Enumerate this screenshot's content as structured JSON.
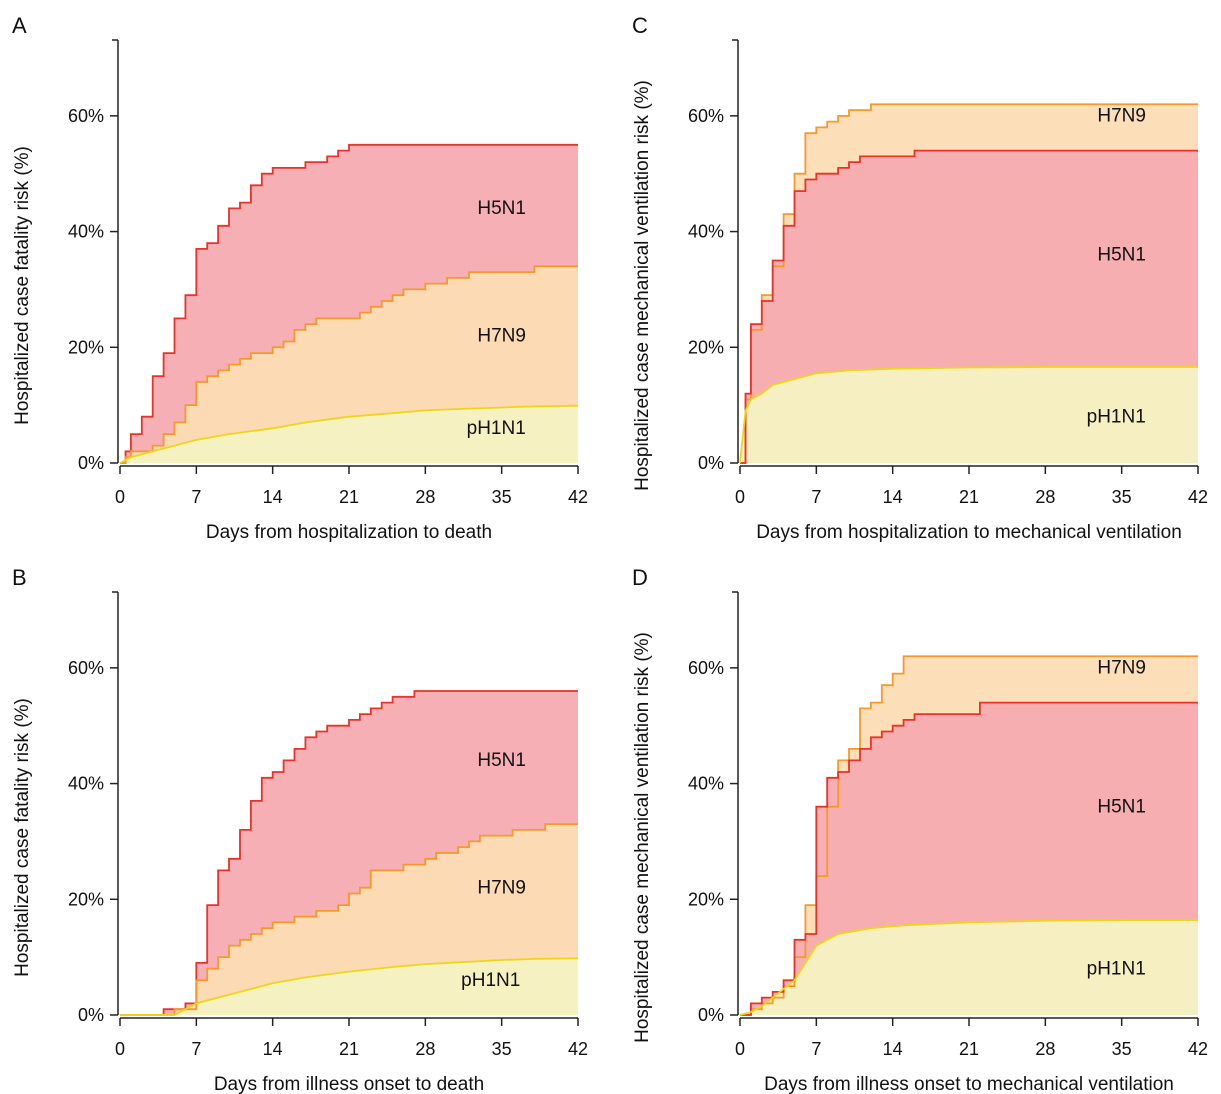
{
  "colors": {
    "H5N1": "#f6abb0",
    "H7N9": "#fcdcb4",
    "pH1N1": "#f5f2c2",
    "line_H5N1": "#e8332a",
    "line_H7N9": "#f39a2a",
    "line_pH1N1": "#efd51a",
    "axis": "#222222"
  },
  "chart_data": [
    {
      "panel": "A",
      "type": "area",
      "xlabel": "Days from hospitalization to death",
      "ylabel": "Hospitalized case fatality risk (%)",
      "xlim": [
        0,
        42
      ],
      "ylim": [
        0,
        70
      ],
      "xticks": [
        0,
        7,
        14,
        21,
        28,
        35,
        42
      ],
      "yticks": [
        0,
        20,
        40,
        60
      ],
      "ytick_labels": [
        "0%",
        "20%",
        "40%",
        "60%"
      ],
      "labels": [
        {
          "text": "H5N1",
          "x": 35,
          "y": 43
        },
        {
          "text": "H7N9",
          "x": 35,
          "y": 21
        },
        {
          "text": "pH1N1",
          "x": 34.5,
          "y": 5
        }
      ],
      "series": [
        {
          "name": "H5N1",
          "step": true,
          "x": [
            0,
            0.5,
            1,
            2,
            3,
            4,
            5,
            6,
            7,
            8,
            9,
            10,
            11,
            12,
            13,
            14,
            15,
            16,
            17,
            18,
            19,
            20,
            21,
            42
          ],
          "y": [
            0,
            2,
            5,
            8,
            15,
            19,
            25,
            29,
            37,
            38,
            41,
            44,
            45,
            48,
            50,
            51,
            51,
            51,
            52,
            52,
            53,
            54,
            55,
            55
          ]
        },
        {
          "name": "H7N9",
          "step": true,
          "x": [
            0,
            0.5,
            1,
            3,
            4,
            5,
            6,
            7,
            8,
            9,
            10,
            11,
            12,
            14,
            15,
            16,
            17,
            18,
            21,
            22,
            23,
            24,
            25,
            26,
            27,
            28,
            30,
            31,
            32,
            33,
            35,
            36,
            37,
            38,
            40,
            41,
            42
          ],
          "y": [
            0,
            1,
            2,
            3,
            5,
            7,
            10,
            14,
            15,
            16,
            17,
            18,
            19,
            20,
            21,
            23,
            24,
            25,
            25,
            26,
            27,
            28,
            29,
            30,
            30,
            31,
            32,
            32,
            33,
            33,
            33,
            33,
            33,
            34,
            34,
            34,
            34
          ]
        },
        {
          "name": "pH1N1",
          "step": false,
          "x": [
            0,
            1,
            3,
            5,
            7,
            10,
            14,
            17,
            21,
            25,
            28,
            32,
            35,
            38,
            42
          ],
          "y": [
            0,
            1,
            2,
            3,
            4,
            5,
            6,
            7,
            8,
            8.6,
            9.1,
            9.4,
            9.6,
            9.8,
            9.9
          ]
        }
      ]
    },
    {
      "panel": "B",
      "type": "area",
      "xlabel": "Days from illness onset to death",
      "ylabel": "Hospitalized case fatality risk (%)",
      "xlim": [
        0,
        42
      ],
      "ylim": [
        0,
        70
      ],
      "xticks": [
        0,
        7,
        14,
        21,
        28,
        35,
        42
      ],
      "yticks": [
        0,
        20,
        40,
        60
      ],
      "ytick_labels": [
        "0%",
        "20%",
        "40%",
        "60%"
      ],
      "labels": [
        {
          "text": "H5N1",
          "x": 35,
          "y": 43
        },
        {
          "text": "H7N9",
          "x": 35,
          "y": 21
        },
        {
          "text": "pH1N1",
          "x": 34,
          "y": 5
        }
      ],
      "series": [
        {
          "name": "H5N1",
          "step": true,
          "x": [
            0,
            3,
            4,
            5,
            6,
            7,
            8,
            9,
            10,
            11,
            12,
            13,
            14,
            15,
            16,
            17,
            18,
            19,
            20,
            21,
            22,
            23,
            24,
            25,
            26,
            27,
            42
          ],
          "y": [
            0,
            0,
            1,
            1,
            2,
            9,
            19,
            25,
            27,
            32,
            37,
            41,
            42,
            44,
            46,
            48,
            49,
            50,
            50,
            51,
            52,
            53,
            54,
            55,
            55,
            56,
            56
          ]
        },
        {
          "name": "H7N9",
          "step": true,
          "x": [
            0,
            3,
            5,
            6,
            7,
            8,
            9,
            10,
            11,
            12,
            13,
            14,
            15,
            16,
            17,
            18,
            19,
            20,
            21,
            22,
            23,
            24,
            25,
            26,
            27,
            28,
            29,
            30,
            31,
            32,
            33,
            34,
            35,
            36,
            37,
            38,
            39,
            40,
            41,
            42
          ],
          "y": [
            0,
            0,
            1,
            1,
            6,
            8,
            10,
            12,
            13,
            14,
            15,
            16,
            16,
            17,
            17,
            18,
            18,
            19,
            21,
            22,
            25,
            25,
            25,
            26,
            26,
            27,
            28,
            28,
            29,
            30,
            31,
            31,
            31,
            32,
            32,
            32,
            33,
            33,
            33,
            33
          ]
        },
        {
          "name": "pH1N1",
          "step": false,
          "x": [
            0,
            5,
            6,
            7,
            9,
            12,
            14,
            17,
            21,
            25,
            28,
            32,
            35,
            38,
            42
          ],
          "y": [
            0,
            0,
            1,
            2,
            3,
            4.5,
            5.5,
            6.5,
            7.5,
            8.3,
            8.8,
            9.2,
            9.5,
            9.7,
            9.8
          ]
        }
      ]
    },
    {
      "panel": "C",
      "type": "area",
      "xlabel": "Days from hospitalization to mechanical ventilation",
      "ylabel": "Hospitalized case mechanical ventilation risk (%)",
      "xlim": [
        0,
        42
      ],
      "ylim": [
        0,
        70
      ],
      "xticks": [
        0,
        7,
        14,
        21,
        28,
        35,
        42
      ],
      "yticks": [
        0,
        20,
        40,
        60
      ],
      "ytick_labels": [
        "0%",
        "20%",
        "40%",
        "60%"
      ],
      "labels": [
        {
          "text": "H7N9",
          "x": 35,
          "y": 59
        },
        {
          "text": "H5N1",
          "x": 35,
          "y": 35
        },
        {
          "text": "pH1N1",
          "x": 34.5,
          "y": 7
        }
      ],
      "series": [
        {
          "name": "H7N9",
          "step": true,
          "x": [
            0,
            0.5,
            1,
            2,
            3,
            4,
            5,
            6,
            7,
            8,
            9,
            10,
            11,
            12,
            13,
            14,
            42
          ],
          "y": [
            0,
            11,
            23,
            29,
            34,
            43,
            50,
            57,
            58,
            59,
            60,
            61,
            61,
            62,
            62,
            62,
            62
          ]
        },
        {
          "name": "H5N1",
          "step": true,
          "x": [
            0,
            0.5,
            1,
            2,
            3,
            4,
            5,
            6,
            7,
            8,
            9,
            10,
            11,
            12,
            13,
            14,
            15,
            16,
            42
          ],
          "y": [
            0,
            12,
            24,
            28,
            35,
            41,
            47,
            49,
            50,
            50,
            51,
            52,
            53,
            53,
            53,
            53,
            53,
            54,
            54
          ]
        },
        {
          "name": "pH1N1",
          "step": false,
          "x": [
            0,
            0.5,
            1,
            2,
            3,
            5,
            7,
            10,
            14,
            21,
            28,
            35,
            42
          ],
          "y": [
            0,
            9,
            11,
            12,
            13.5,
            14.5,
            15.5,
            16,
            16.3,
            16.5,
            16.6,
            16.6,
            16.6
          ]
        }
      ]
    },
    {
      "panel": "D",
      "type": "area",
      "xlabel": "Days from illness onset to mechanical ventilation",
      "ylabel": "Hospitalized case mechanical ventilation risk (%)",
      "xlim": [
        0,
        42
      ],
      "ylim": [
        0,
        70
      ],
      "xticks": [
        0,
        7,
        14,
        21,
        28,
        35,
        42
      ],
      "yticks": [
        0,
        20,
        40,
        60
      ],
      "ytick_labels": [
        "0%",
        "20%",
        "40%",
        "60%"
      ],
      "labels": [
        {
          "text": "H7N9",
          "x": 35,
          "y": 59
        },
        {
          "text": "H5N1",
          "x": 35,
          "y": 35
        },
        {
          "text": "pH1N1",
          "x": 34.5,
          "y": 7
        }
      ],
      "series": [
        {
          "name": "H7N9",
          "step": true,
          "x": [
            0,
            1,
            2,
            3,
            4,
            5,
            6,
            7,
            8,
            9,
            10,
            11,
            12,
            13,
            14,
            15,
            42
          ],
          "y": [
            0,
            1,
            2,
            3,
            5,
            10,
            19,
            24,
            36,
            44,
            46,
            53,
            54,
            57,
            59,
            62,
            62
          ]
        },
        {
          "name": "H5N1",
          "step": true,
          "x": [
            0,
            1,
            2,
            3,
            4,
            5,
            6,
            7,
            8,
            9,
            10,
            11,
            12,
            13,
            14,
            15,
            16,
            17,
            22,
            42
          ],
          "y": [
            0,
            2,
            3,
            4,
            6,
            13,
            14,
            36,
            41,
            42,
            44,
            46,
            48,
            49,
            50,
            51,
            52,
            52,
            54,
            54
          ]
        },
        {
          "name": "pH1N1",
          "step": false,
          "x": [
            0,
            1,
            2,
            3,
            5,
            6,
            7,
            9,
            12,
            15,
            21,
            28,
            35,
            42
          ],
          "y": [
            0,
            0.5,
            1.5,
            3,
            6,
            9,
            12,
            14,
            15,
            15.5,
            16,
            16.3,
            16.4,
            16.4
          ]
        }
      ]
    }
  ]
}
